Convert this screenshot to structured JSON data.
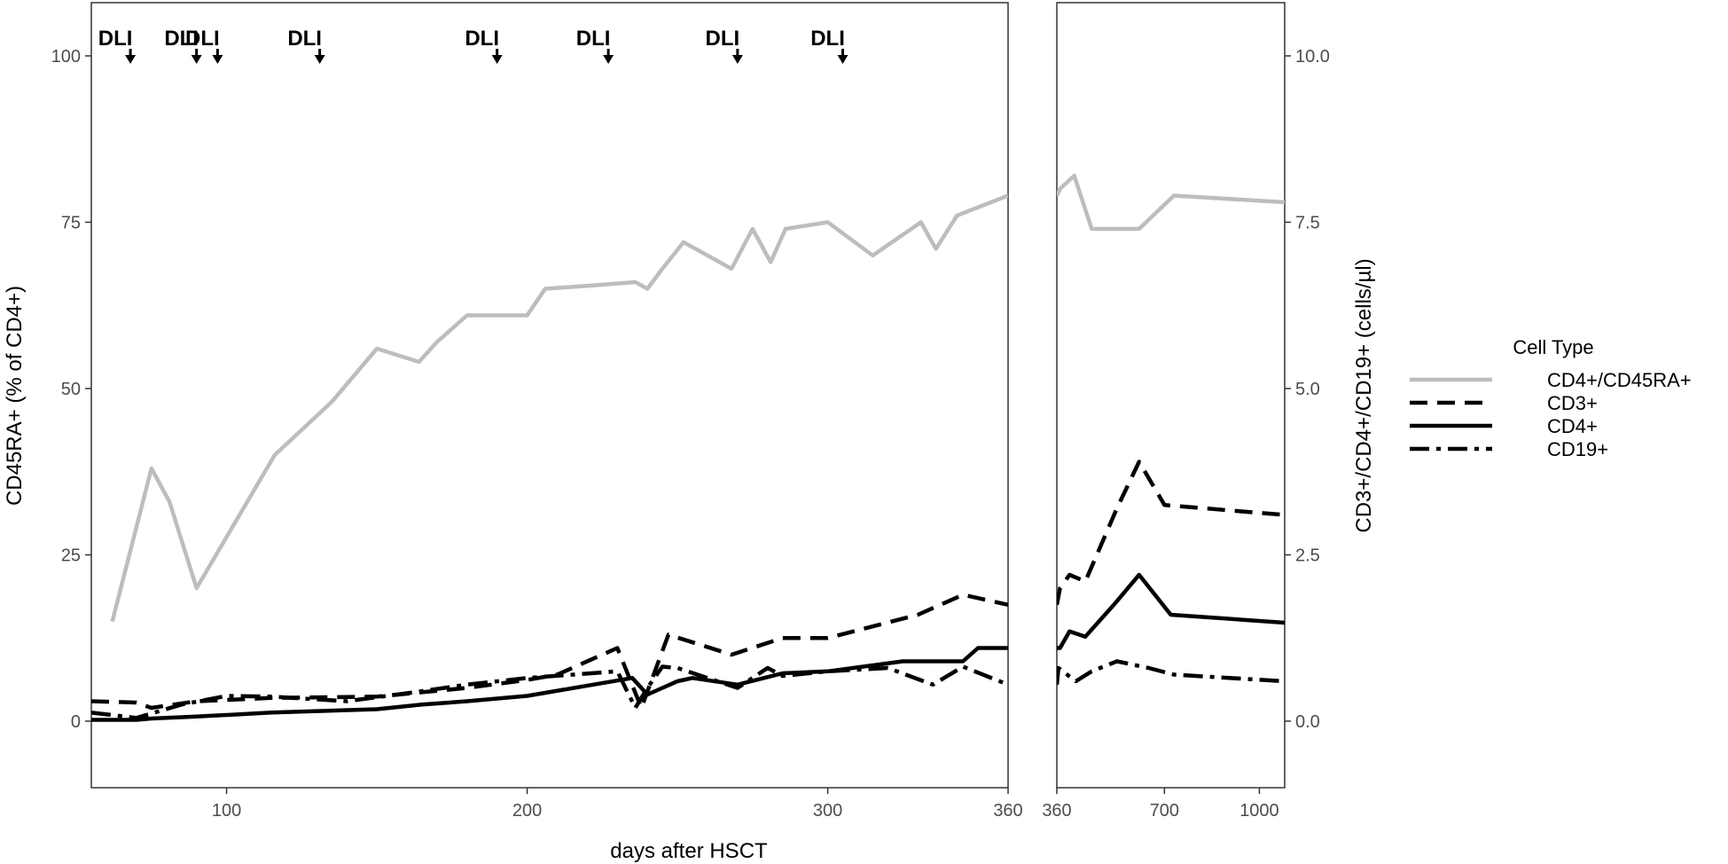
{
  "chart_data": {
    "type": "line",
    "x_axis_title": "days after HSCT",
    "y_left_title": "CD45RA+ (% of CD4+)",
    "y_right_title": "CD3+/CD4+/CD19+ (cells/µl)",
    "legend": {
      "title": "Cell Type",
      "position": "right",
      "entries": [
        "CD4+/CD45RA+",
        "CD3+",
        "CD4+",
        "CD19+"
      ]
    },
    "left_panel": {
      "xlim": [
        55,
        360
      ],
      "x_ticks": [
        100,
        200,
        300,
        360
      ],
      "x_tick_labels": [
        "100",
        "200",
        "300",
        "360"
      ]
    },
    "right_panel": {
      "xlim": [
        360,
        1080
      ],
      "x_ticks": [
        360,
        700,
        1000
      ],
      "x_tick_labels": [
        "360",
        "700",
        "1000"
      ]
    },
    "y_left": {
      "lim": [
        -10,
        108
      ],
      "ticks": [
        0,
        25,
        50,
        75,
        100
      ],
      "tick_labels": [
        "0",
        "25",
        "50",
        "75",
        "100"
      ]
    },
    "y_right": {
      "lim": [
        -1.0,
        10.8
      ],
      "ticks": [
        0,
        2.5,
        5,
        7.5,
        10
      ],
      "tick_labels": [
        "0.0",
        "2.5",
        "5.0",
        "7.5",
        "10.0"
      ]
    },
    "dli_label": "DLI",
    "dli_days": [
      68,
      90,
      97,
      131,
      190,
      227,
      270,
      305
    ],
    "series": [
      {
        "name": "CD4+/CD45RA+",
        "axis": "left",
        "color": "#bdbdbd",
        "dash": "solid",
        "x": [
          62,
          75,
          81,
          90,
          116,
          135,
          150,
          164,
          170,
          180,
          190,
          200,
          206,
          222,
          236,
          240,
          245,
          252,
          268,
          275,
          281,
          286,
          300,
          315,
          331,
          336,
          343,
          360,
          370,
          415,
          470,
          620,
          730,
          1080
        ],
        "y": [
          15,
          38,
          33,
          20,
          40,
          48,
          56,
          54,
          57,
          61,
          61,
          61,
          65,
          65.5,
          66,
          65,
          68,
          72,
          68,
          74,
          69,
          74,
          75,
          70,
          75,
          71,
          76,
          79,
          80,
          82,
          74,
          74,
          79,
          78
        ]
      },
      {
        "name": "CD3+",
        "axis": "right",
        "color": "#000000",
        "dash": "dashed",
        "x": [
          55,
          70,
          75,
          90,
          115,
          150,
          180,
          200,
          210,
          230,
          238,
          247,
          268,
          285,
          300,
          330,
          345,
          360,
          370,
          400,
          450,
          550,
          620,
          700,
          1080
        ],
        "y": [
          0.3,
          0.28,
          0.2,
          0.3,
          0.35,
          0.37,
          0.5,
          0.62,
          0.7,
          1.1,
          0.2,
          1.3,
          1.0,
          1.25,
          1.25,
          1.6,
          1.9,
          1.75,
          2.0,
          2.2,
          2.1,
          3.2,
          3.9,
          3.25,
          3.1
        ]
      },
      {
        "name": "CD4+",
        "axis": "right",
        "color": "#000000",
        "dash": "solid",
        "x": [
          55,
          70,
          75,
          90,
          115,
          150,
          165,
          180,
          200,
          235,
          240,
          245,
          250,
          255,
          270,
          285,
          300,
          325,
          345,
          350,
          360,
          370,
          400,
          450,
          540,
          620,
          720,
          1080
        ],
        "y": [
          0.02,
          0.02,
          0.04,
          0.07,
          0.13,
          0.18,
          0.25,
          0.3,
          0.38,
          0.65,
          0.4,
          0.5,
          0.6,
          0.65,
          0.55,
          0.72,
          0.75,
          0.9,
          0.9,
          1.1,
          1.1,
          1.1,
          1.35,
          1.27,
          1.75,
          2.2,
          1.6,
          1.48
        ]
      },
      {
        "name": "CD19+",
        "axis": "right",
        "color": "#000000",
        "dash": "dashdot",
        "x": [
          55,
          70,
          85,
          100,
          115,
          140,
          160,
          180,
          200,
          230,
          236,
          240,
          245,
          250,
          260,
          270,
          280,
          285,
          300,
          320,
          335,
          345,
          360,
          365,
          420,
          470,
          550,
          650,
          730,
          1080
        ],
        "y": [
          0.13,
          0.05,
          0.25,
          0.38,
          0.37,
          0.3,
          0.42,
          0.55,
          0.65,
          0.75,
          0.2,
          0.5,
          0.82,
          0.8,
          0.65,
          0.5,
          0.8,
          0.68,
          0.75,
          0.8,
          0.55,
          0.82,
          0.55,
          0.8,
          0.6,
          0.75,
          0.9,
          0.8,
          0.7,
          0.6
        ]
      }
    ]
  }
}
